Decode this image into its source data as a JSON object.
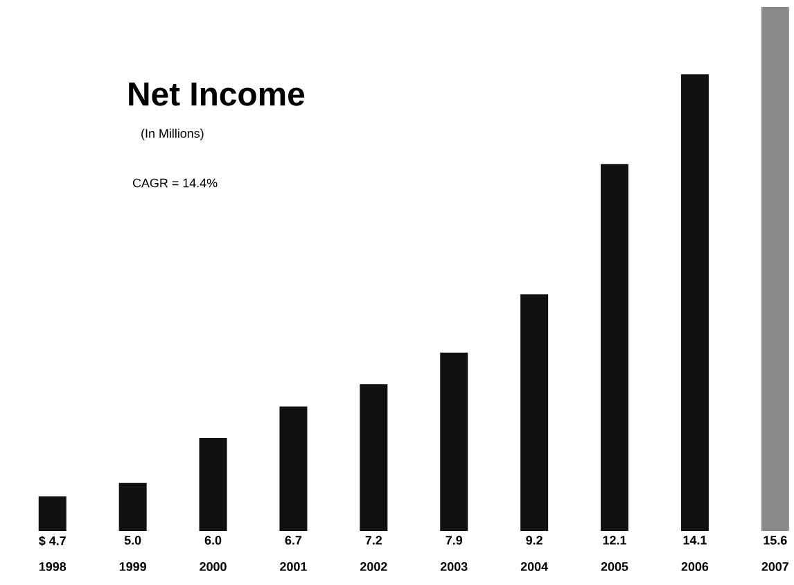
{
  "chart_data": {
    "type": "bar",
    "title": "Net Income",
    "subtitle": "(In Millions)",
    "annotations": [
      "CAGR = 14.4%"
    ],
    "categories": [
      "1998",
      "1999",
      "2000",
      "2001",
      "2002",
      "2003",
      "2004",
      "2005",
      "2006",
      "2007"
    ],
    "values": [
      4.7,
      5.0,
      6.0,
      6.7,
      7.2,
      7.9,
      9.2,
      12.1,
      14.1,
      15.6
    ],
    "value_labels": [
      "$ 4.7",
      "5.0",
      "6.0",
      "6.7",
      "7.2",
      "7.9",
      "9.2",
      "12.1",
      "14.1",
      "15.6"
    ],
    "colors": [
      "#111111",
      "#111111",
      "#111111",
      "#111111",
      "#111111",
      "#111111",
      "#111111",
      "#111111",
      "#111111",
      "#8a8a8a"
    ],
    "ylim": [
      3.93,
      15.6
    ]
  }
}
